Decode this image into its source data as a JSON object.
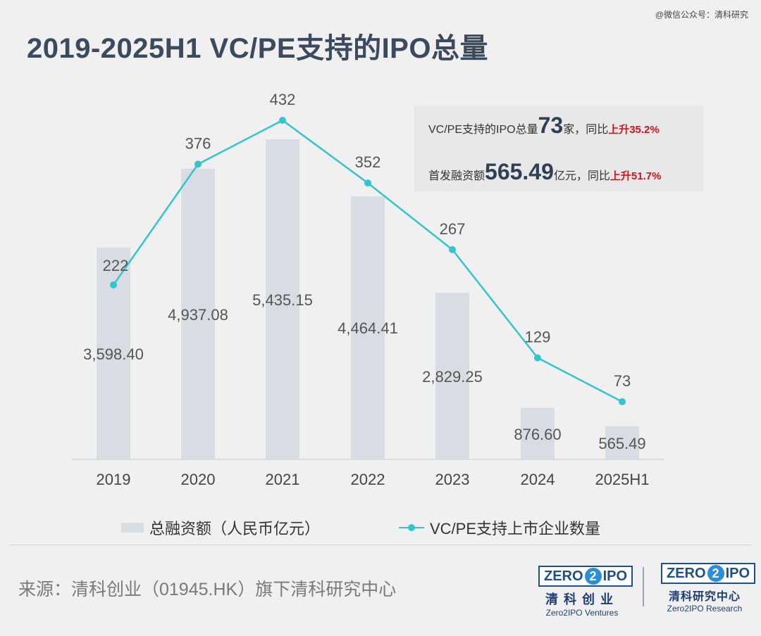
{
  "watermark": "@微信公众号：清科研究",
  "title": "2019-2025H1 VC/PE支持的IPO总量",
  "stat_box": {
    "line1_prefix": "VC/PE支持的IPO总量",
    "line1_value": "73",
    "line1_unit": "家，同比",
    "line1_change": "上升35.2%",
    "line2_prefix": "首发融资额",
    "line2_value": "565.49",
    "line2_unit": "亿元，同比",
    "line2_change": "上升51.7%"
  },
  "chart_data": {
    "type": "bar",
    "categories": [
      "2019",
      "2020",
      "2021",
      "2022",
      "2023",
      "2024",
      "2025H1"
    ],
    "series": [
      {
        "name": "总融资额（人民币亿元）",
        "type": "bar",
        "values": [
          3598.4,
          4937.08,
          5435.15,
          4464.41,
          2829.25,
          876.6,
          565.49
        ],
        "labels": [
          "3,598.40",
          "4,937.08",
          "5,435.15",
          "4,464.41",
          "2,829.25",
          "876.60",
          "565.49"
        ],
        "color": "#d9dce2"
      },
      {
        "name": "VC/PE支持上市企业数量",
        "type": "line",
        "values": [
          222,
          376,
          432,
          352,
          267,
          129,
          73
        ],
        "labels": [
          "222",
          "376",
          "432",
          "352",
          "267",
          "129",
          "73"
        ],
        "color": "#33c4cf"
      }
    ],
    "legend_position": "bottom",
    "grid": false
  },
  "source": "来源：清科创业（01945.HK）旗下清科研究中心",
  "logos": {
    "left": {
      "mark_left": "ZERO",
      "mark_two": "2",
      "mark_right": "IPO",
      "cn": "清科创业",
      "en": "Zero2IPO Ventures"
    },
    "right": {
      "mark_left": "ZERO",
      "mark_two": "2",
      "mark_right": "IPO",
      "cn": "清科研究中心",
      "en": "Zero2IPO Research"
    }
  }
}
